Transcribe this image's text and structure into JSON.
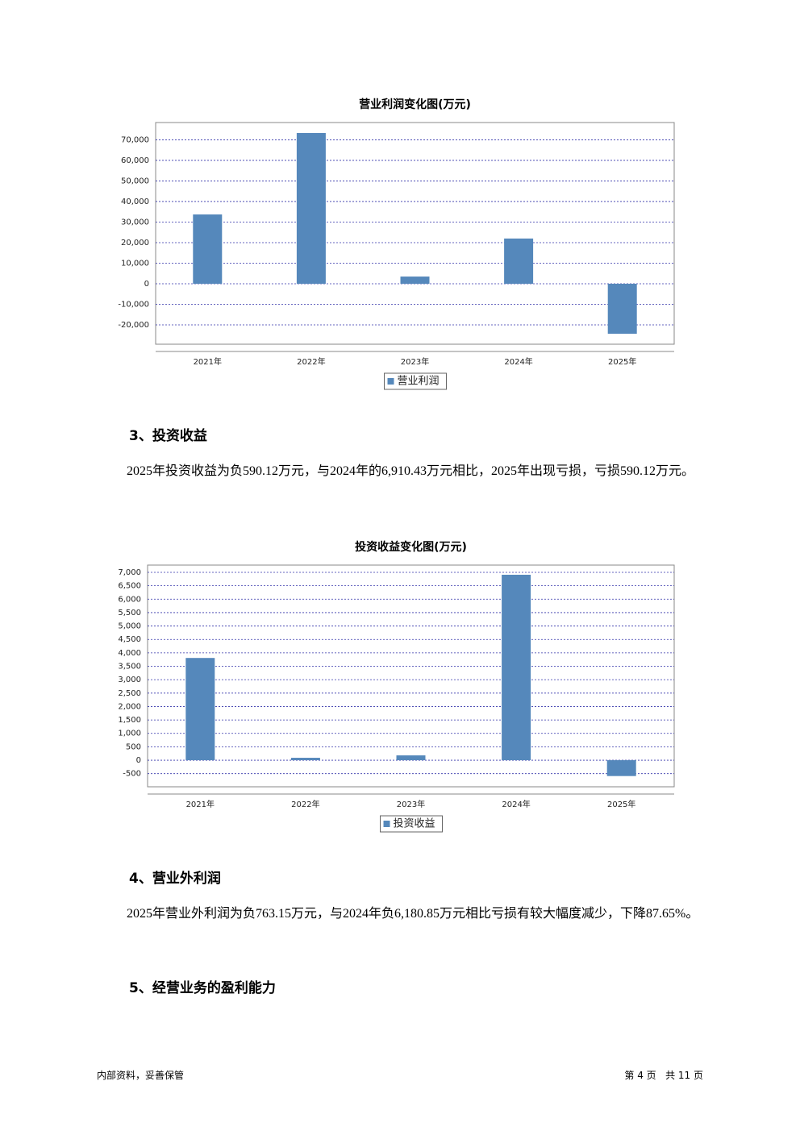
{
  "chart_data": [
    {
      "type": "bar",
      "title": "营业利润变化图(万元)",
      "categories": [
        "2021年",
        "2022年",
        "2023年",
        "2024年",
        "2025年"
      ],
      "series": [
        {
          "name": "营业利润",
          "color": "#5588bb",
          "values": [
            33700,
            73300,
            3500,
            22000,
            -24300
          ]
        }
      ],
      "ylim": [
        -29400,
        78400
      ],
      "yticks": [
        {
          "value": -20000,
          "label": "-20,000"
        },
        {
          "value": -10000,
          "label": "-10,000"
        },
        0,
        {
          "value": 10000,
          "label": "10,000"
        },
        {
          "value": 20000,
          "label": "20,000"
        },
        {
          "value": 30000,
          "label": "30,000"
        },
        {
          "value": 40000,
          "label": "40,000"
        },
        {
          "value": 50000,
          "label": "50,000"
        },
        {
          "value": 60000,
          "label": "60,000"
        },
        {
          "value": 70000,
          "label": "70,000"
        }
      ],
      "grid": true,
      "legend": "bottom"
    },
    {
      "type": "bar",
      "title": "投资收益变化图(万元)",
      "categories": [
        "2021年",
        "2022年",
        "2023年",
        "2024年",
        "2025年"
      ],
      "series": [
        {
          "name": "投资收益",
          "color": "#5588bb",
          "values": [
            3810,
            90,
            180,
            6910,
            -590
          ]
        }
      ],
      "ylim": [
        -990,
        7270
      ],
      "yticks": [
        -500,
        0,
        500,
        {
          "value": 1000,
          "label": "1,000"
        },
        {
          "value": 1500,
          "label": "1,500"
        },
        {
          "value": 2000,
          "label": "2,000"
        },
        {
          "value": 2500,
          "label": "2,500"
        },
        {
          "value": 3000,
          "label": "3,000"
        },
        {
          "value": 3500,
          "label": "3,500"
        },
        {
          "value": 4000,
          "label": "4,000"
        },
        {
          "value": 4500,
          "label": "4,500"
        },
        {
          "value": 5000,
          "label": "5,000"
        },
        {
          "value": 5500,
          "label": "5,500"
        },
        {
          "value": 6000,
          "label": "6,000"
        },
        {
          "value": 6500,
          "label": "6,500"
        },
        {
          "value": 7000,
          "label": "7,000"
        }
      ],
      "grid": true,
      "legend": "bottom"
    }
  ],
  "sections": [
    {
      "heading": "3、投资收益",
      "text": "2025年投资收益为负590.12万元，与2024年的6,910.43万元相比，2025年出现亏损，亏损590.12万元。"
    },
    {
      "heading": "4、营业外利润",
      "text": "2025年营业外利润为负763.15万元，与2024年负6,180.85万元相比亏损有较大幅度减少，下降87.65%。"
    },
    {
      "heading": "5、经营业务的盈利能力"
    }
  ],
  "footer": {
    "left": "内部资料，妥善保管",
    "right": "第 4 页   共 11 页"
  }
}
